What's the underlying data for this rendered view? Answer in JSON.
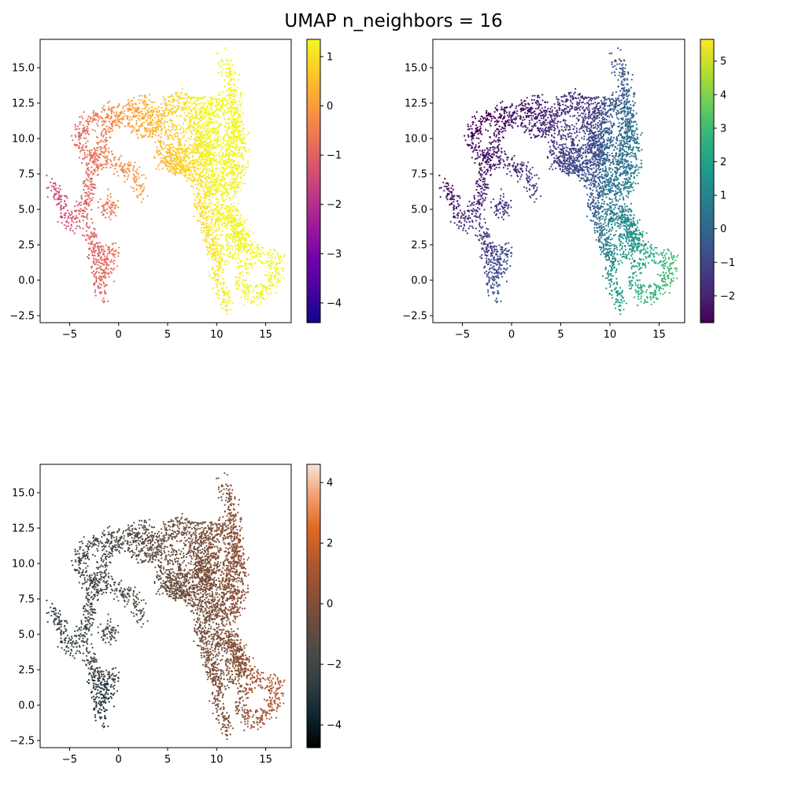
{
  "title": "UMAP n_neighbors = 16",
  "chart_data": [
    {
      "type": "scatter",
      "panel": "top-left",
      "colormap": "plasma",
      "xlim": [
        -8,
        17.6
      ],
      "ylim": [
        -3,
        17
      ],
      "x_ticks": [
        -5,
        0,
        5,
        10,
        15
      ],
      "x_tick_labels": [
        "−5",
        "0",
        "5",
        "10",
        "15"
      ],
      "y_ticks": [
        -2.5,
        0.0,
        2.5,
        5.0,
        7.5,
        10.0,
        12.5,
        15.0
      ],
      "y_tick_labels": [
        "−2.5",
        "0.0",
        "2.5",
        "5.0",
        "7.5",
        "10.0",
        "12.5",
        "15.0"
      ],
      "colorbar": {
        "range": [
          -4.4,
          1.35
        ],
        "ticks": [
          -4,
          -3,
          -2,
          -1,
          0,
          1
        ],
        "tick_labels": [
          "−4",
          "−3",
          "−2",
          "−1",
          "0",
          "1"
        ]
      }
    },
    {
      "type": "scatter",
      "panel": "top-right",
      "colormap": "viridis",
      "xlim": [
        -8,
        17.6
      ],
      "ylim": [
        -3,
        17
      ],
      "x_ticks": [
        -5,
        0,
        5,
        10,
        15
      ],
      "x_tick_labels": [
        "−5",
        "0",
        "5",
        "10",
        "15"
      ],
      "y_ticks": [
        -2.5,
        0.0,
        2.5,
        5.0,
        7.5,
        10.0,
        12.5,
        15.0
      ],
      "y_tick_labels": [
        "−2.5",
        "0.0",
        "2.5",
        "5.0",
        "7.5",
        "10.0",
        "12.5",
        "15.0"
      ],
      "colorbar": {
        "range": [
          -2.8,
          5.65
        ],
        "ticks": [
          -2,
          -1,
          0,
          1,
          2,
          3,
          4,
          5
        ],
        "tick_labels": [
          "−2",
          "−1",
          "0",
          "1",
          "2",
          "3",
          "4",
          "5"
        ]
      }
    },
    {
      "type": "scatter",
      "panel": "bottom-left",
      "colormap": "oranges-dark",
      "xlim": [
        -8,
        17.6
      ],
      "ylim": [
        -3,
        17
      ],
      "x_ticks": [
        -5,
        0,
        5,
        10,
        15
      ],
      "x_tick_labels": [
        "−5",
        "0",
        "5",
        "10",
        "15"
      ],
      "y_ticks": [
        -2.5,
        0.0,
        2.5,
        5.0,
        7.5,
        10.0,
        12.5,
        15.0
      ],
      "y_tick_labels": [
        "−2.5",
        "0.0",
        "2.5",
        "5.0",
        "7.5",
        "10.0",
        "12.5",
        "15.0"
      ],
      "colorbar": {
        "range": [
          -4.75,
          4.6
        ],
        "ticks": [
          -4,
          -2,
          0,
          2,
          4
        ],
        "tick_labels": [
          "−4",
          "−2",
          "0",
          "2",
          "4"
        ]
      }
    }
  ]
}
